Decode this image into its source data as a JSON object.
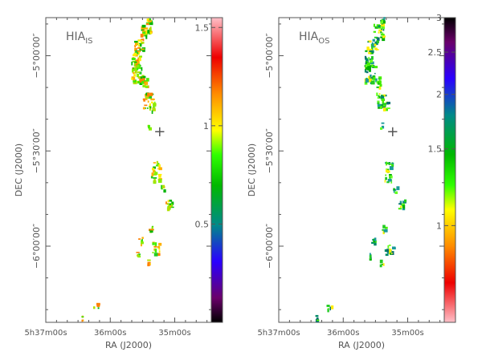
{
  "chart_data": [
    {
      "type": "heatmap",
      "panel_label": "HIA",
      "panel_label_sub": "IS",
      "ylabel": "DEC (J2000)",
      "xlabel": "RA (J2000)",
      "y_ticks": [
        {
          "label": "−5°00′00″",
          "dec_min": -300
        },
        {
          "label": "−5°30′00″",
          "dec_min": -330
        },
        {
          "label": "−6°00′00″",
          "dec_min": -360
        }
      ],
      "x_ticks": [
        {
          "label": "5h37m00s",
          "ra_s": 420
        },
        {
          "label": "36m00s",
          "ra_s": 360
        },
        {
          "label": "35m00s",
          "ra_s": 300
        }
      ],
      "x_range_ra_s": [
        420,
        266
      ],
      "y_range_dec_min": [
        -288,
        -384
      ],
      "marker": {
        "symbol": "+",
        "ra_s": 314,
        "dec_min": -324
      },
      "colorbar": {
        "min": 0,
        "max": 1.55,
        "ticks": [
          0.5,
          1,
          1.5
        ],
        "tick_labels": [
          "0.5",
          "1",
          "1.5"
        ],
        "scale": "linear"
      }
    },
    {
      "type": "heatmap",
      "panel_label": "HIA",
      "panel_label_sub": "OS",
      "ylabel": "DEC (J2000)",
      "xlabel": "RA (J2000)",
      "y_ticks": [
        {
          "label": "−5°00′00″",
          "dec_min": -300
        },
        {
          "label": "−5°30′00″",
          "dec_min": -330
        },
        {
          "label": "−6°00′00″",
          "dec_min": -360
        }
      ],
      "x_ticks": [
        {
          "label": "5h37m00s",
          "ra_s": 420
        },
        {
          "label": "36m00s",
          "ra_s": 360
        },
        {
          "label": "35m00s",
          "ra_s": 300
        }
      ],
      "x_range_ra_s": [
        420,
        266
      ],
      "y_range_dec_min": [
        -288,
        -384
      ],
      "marker": {
        "symbol": "+",
        "ra_s": 314,
        "dec_min": -324
      },
      "colorbar": {
        "min": 0.6,
        "max": 3.0,
        "ticks": [
          1,
          1.5,
          2,
          2.5,
          3
        ],
        "tick_labels": [
          "1",
          "1.5",
          "2",
          "2.5",
          "3"
        ],
        "scale": "log"
      }
    }
  ]
}
